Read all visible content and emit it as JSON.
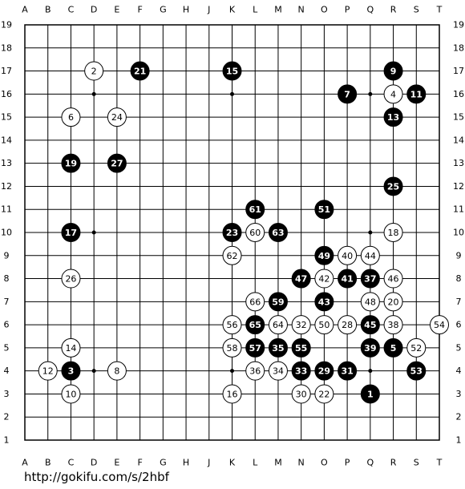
{
  "board": {
    "columns": [
      "A",
      "B",
      "C",
      "D",
      "E",
      "F",
      "G",
      "H",
      "J",
      "K",
      "L",
      "M",
      "N",
      "O",
      "P",
      "Q",
      "R",
      "S",
      "T"
    ],
    "rows": [
      19,
      18,
      17,
      16,
      15,
      14,
      13,
      12,
      11,
      10,
      9,
      8,
      7,
      6,
      5,
      4,
      3,
      2,
      1
    ],
    "stones": [
      {
        "label": 1,
        "color": "black",
        "col": "Q",
        "row": 3
      },
      {
        "label": 2,
        "color": "white",
        "col": "D",
        "row": 17
      },
      {
        "label": 3,
        "color": "black",
        "col": "C",
        "row": 4
      },
      {
        "label": 4,
        "color": "white",
        "col": "R",
        "row": 16
      },
      {
        "label": 5,
        "color": "black",
        "col": "R",
        "row": 5
      },
      {
        "label": 6,
        "color": "white",
        "col": "C",
        "row": 15
      },
      {
        "label": 7,
        "color": "black",
        "col": "P",
        "row": 16
      },
      {
        "label": 8,
        "color": "white",
        "col": "E",
        "row": 4
      },
      {
        "label": 9,
        "color": "black",
        "col": "R",
        "row": 17
      },
      {
        "label": 10,
        "color": "white",
        "col": "C",
        "row": 3
      },
      {
        "label": 11,
        "color": "black",
        "col": "S",
        "row": 16
      },
      {
        "label": 12,
        "color": "white",
        "col": "B",
        "row": 4
      },
      {
        "label": 13,
        "color": "black",
        "col": "R",
        "row": 15
      },
      {
        "label": 14,
        "color": "white",
        "col": "C",
        "row": 5
      },
      {
        "label": 15,
        "color": "black",
        "col": "K",
        "row": 17
      },
      {
        "label": 16,
        "color": "white",
        "col": "K",
        "row": 3
      },
      {
        "label": 17,
        "color": "black",
        "col": "C",
        "row": 10
      },
      {
        "label": 18,
        "color": "white",
        "col": "R",
        "row": 10
      },
      {
        "label": 19,
        "color": "black",
        "col": "C",
        "row": 13
      },
      {
        "label": 20,
        "color": "white",
        "col": "R",
        "row": 7
      },
      {
        "label": 21,
        "color": "black",
        "col": "F",
        "row": 17
      },
      {
        "label": 22,
        "color": "white",
        "col": "O",
        "row": 3
      },
      {
        "label": 23,
        "color": "black",
        "col": "K",
        "row": 10
      },
      {
        "label": 24,
        "color": "white",
        "col": "E",
        "row": 15
      },
      {
        "label": 25,
        "color": "black",
        "col": "R",
        "row": 12
      },
      {
        "label": 26,
        "color": "white",
        "col": "C",
        "row": 8
      },
      {
        "label": 27,
        "color": "black",
        "col": "E",
        "row": 13
      },
      {
        "label": 28,
        "color": "white",
        "col": "P",
        "row": 6
      },
      {
        "label": 29,
        "color": "black",
        "col": "O",
        "row": 4
      },
      {
        "label": 30,
        "color": "white",
        "col": "N",
        "row": 3
      },
      {
        "label": 31,
        "color": "black",
        "col": "P",
        "row": 4
      },
      {
        "label": 32,
        "color": "white",
        "col": "N",
        "row": 6
      },
      {
        "label": 33,
        "color": "black",
        "col": "N",
        "row": 4
      },
      {
        "label": 34,
        "color": "white",
        "col": "M",
        "row": 4
      },
      {
        "label": 35,
        "color": "black",
        "col": "M",
        "row": 5
      },
      {
        "label": 36,
        "color": "white",
        "col": "L",
        "row": 4
      },
      {
        "label": 37,
        "color": "black",
        "col": "Q",
        "row": 8
      },
      {
        "label": 38,
        "color": "white",
        "col": "R",
        "row": 6
      },
      {
        "label": 39,
        "color": "black",
        "col": "Q",
        "row": 5
      },
      {
        "label": 40,
        "color": "white",
        "col": "P",
        "row": 9
      },
      {
        "label": 41,
        "color": "black",
        "col": "P",
        "row": 8
      },
      {
        "label": 42,
        "color": "white",
        "col": "O",
        "row": 8
      },
      {
        "label": 43,
        "color": "black",
        "col": "O",
        "row": 7
      },
      {
        "label": 44,
        "color": "white",
        "col": "Q",
        "row": 9
      },
      {
        "label": 45,
        "color": "black",
        "col": "Q",
        "row": 6
      },
      {
        "label": 46,
        "color": "white",
        "col": "R",
        "row": 8
      },
      {
        "label": 47,
        "color": "black",
        "col": "N",
        "row": 8
      },
      {
        "label": 48,
        "color": "white",
        "col": "Q",
        "row": 7
      },
      {
        "label": 49,
        "color": "black",
        "col": "O",
        "row": 9
      },
      {
        "label": 50,
        "color": "white",
        "col": "O",
        "row": 6
      },
      {
        "label": 51,
        "color": "black",
        "col": "O",
        "row": 11
      },
      {
        "label": 52,
        "color": "white",
        "col": "S",
        "row": 5
      },
      {
        "label": 53,
        "color": "black",
        "col": "S",
        "row": 4
      },
      {
        "label": 54,
        "color": "white",
        "col": "T",
        "row": 6
      },
      {
        "label": 55,
        "color": "black",
        "col": "N",
        "row": 5
      },
      {
        "label": 56,
        "color": "white",
        "col": "K",
        "row": 6
      },
      {
        "label": 57,
        "color": "black",
        "col": "L",
        "row": 5
      },
      {
        "label": 58,
        "color": "white",
        "col": "K",
        "row": 5
      },
      {
        "label": 59,
        "color": "black",
        "col": "M",
        "row": 7
      },
      {
        "label": 60,
        "color": "white",
        "col": "L",
        "row": 10
      },
      {
        "label": 61,
        "color": "black",
        "col": "L",
        "row": 11
      },
      {
        "label": 62,
        "color": "white",
        "col": "K",
        "row": 9
      },
      {
        "label": 63,
        "color": "black",
        "col": "M",
        "row": 10
      },
      {
        "label": 64,
        "color": "white",
        "col": "M",
        "row": 6
      },
      {
        "label": 65,
        "color": "black",
        "col": "L",
        "row": 6
      },
      {
        "label": 66,
        "color": "white",
        "col": "L",
        "row": 7
      }
    ],
    "url": "http://gokifu.com/s/2hbf"
  }
}
